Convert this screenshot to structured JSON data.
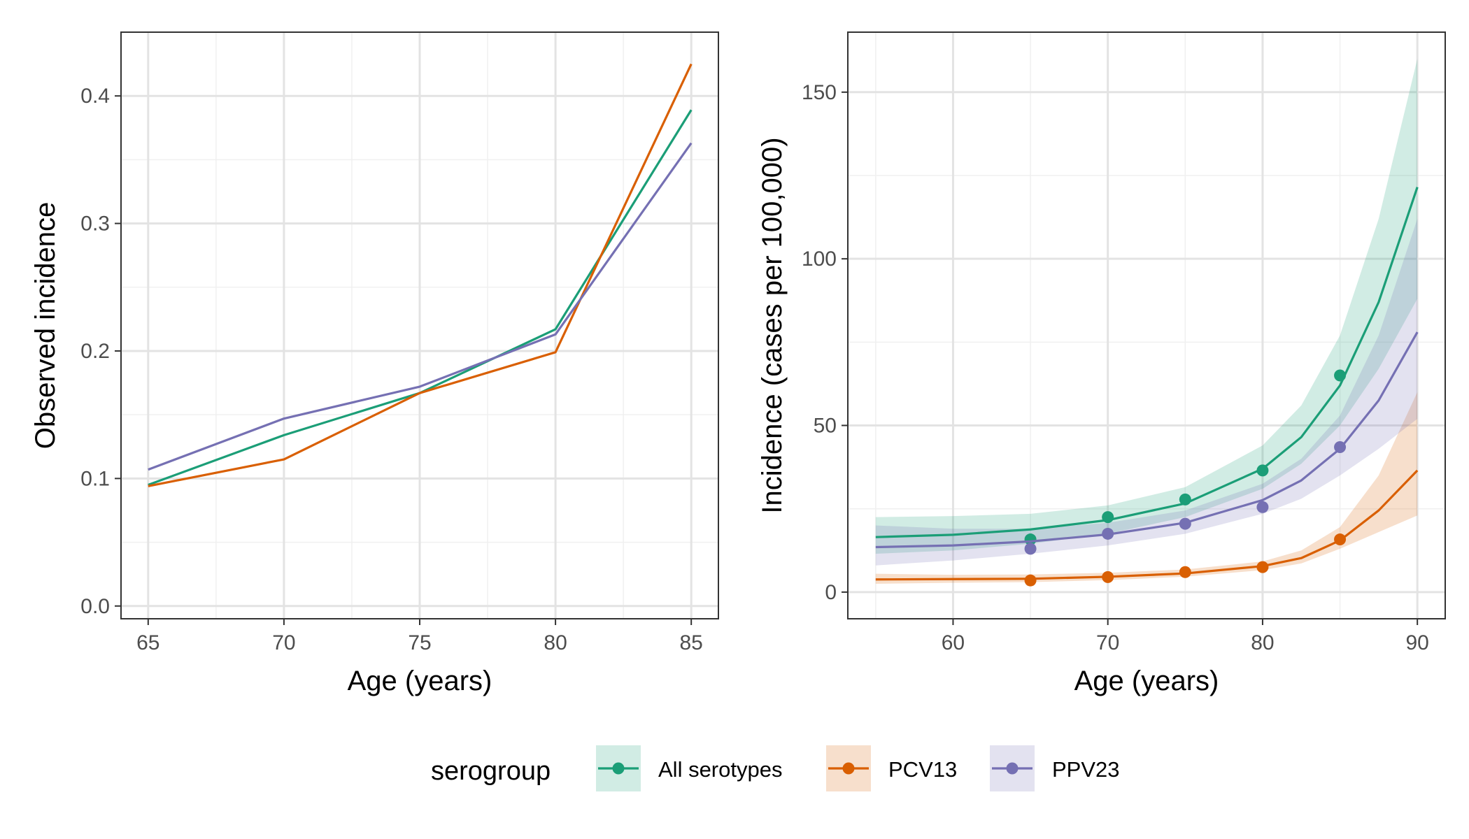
{
  "colors": {
    "All serotypes": "#1b9e77",
    "PCV13": "#d95f02",
    "PPV23": "#7570b3"
  },
  "legend": {
    "title": "serogroup",
    "items": [
      "All serotypes",
      "PCV13",
      "PPV23"
    ]
  },
  "chart_data": [
    {
      "type": "line",
      "xlabel": "Age (years)",
      "ylabel": "Observed incidence",
      "xlim": [
        64,
        86
      ],
      "ylim": [
        -0.01,
        0.45
      ],
      "xticks": [
        65,
        70,
        75,
        80,
        85
      ],
      "xtick_labels": [
        "65",
        "70",
        "75",
        "80",
        "85"
      ],
      "yticks": [
        0.0,
        0.1,
        0.2,
        0.3,
        0.4
      ],
      "ytick_labels": [
        "0.0",
        "0.1",
        "0.2",
        "0.3",
        "0.4"
      ],
      "grid": true,
      "x": [
        65,
        70,
        75,
        80,
        85
      ],
      "series": [
        {
          "name": "All serotypes",
          "values": [
            0.095,
            0.134,
            0.167,
            0.217,
            0.389
          ]
        },
        {
          "name": "PCV13",
          "values": [
            0.094,
            0.115,
            0.167,
            0.199,
            0.425
          ]
        },
        {
          "name": "PPV23",
          "values": [
            0.107,
            0.147,
            0.172,
            0.213,
            0.363
          ]
        }
      ]
    },
    {
      "type": "line",
      "xlabel": "Age (years)",
      "ylabel": "Incidence (cases per 100,000)",
      "xlim": [
        53.2,
        91.8
      ],
      "ylim": [
        -8,
        168
      ],
      "xticks": [
        60,
        70,
        80,
        90
      ],
      "xtick_labels": [
        "60",
        "70",
        "80",
        "90"
      ],
      "yticks": [
        0,
        50,
        100,
        150
      ],
      "ytick_labels": [
        "0",
        "50",
        "100",
        "150"
      ],
      "grid": true,
      "points_x": [
        65,
        70,
        75,
        80,
        85
      ],
      "series": [
        {
          "name": "All serotypes",
          "curve_x": [
            55,
            60,
            65,
            70,
            75,
            80,
            82.5,
            85,
            87.5,
            90
          ],
          "curve_y": [
            16.5,
            17.2,
            18.8,
            21.6,
            26.6,
            37.0,
            46.5,
            62.0,
            87.0,
            121.5
          ],
          "lower": [
            11.5,
            12.5,
            14.5,
            17.5,
            22.5,
            31.0,
            38.5,
            50.0,
            67.0,
            88.0
          ],
          "upper": [
            22.5,
            22.8,
            23.5,
            26.0,
            31.5,
            44.0,
            56.0,
            77.0,
            112.0,
            160.0
          ],
          "points": [
            15.8,
            22.5,
            27.8,
            36.5,
            65.0
          ]
        },
        {
          "name": "PCV13",
          "curve_x": [
            55,
            60,
            65,
            70,
            75,
            80,
            82.5,
            85,
            87.5,
            90
          ],
          "curve_y": [
            3.8,
            3.9,
            4.0,
            4.6,
            5.6,
            7.8,
            10.2,
            15.5,
            24.5,
            36.5
          ],
          "lower": [
            2.5,
            2.8,
            3.0,
            3.6,
            4.6,
            6.6,
            8.6,
            13.0,
            18.0,
            23.0
          ],
          "upper": [
            5.5,
            5.2,
            5.3,
            5.8,
            6.8,
            9.2,
            12.5,
            19.5,
            35.0,
            60.0
          ],
          "points": [
            3.5,
            4.5,
            6.0,
            7.5,
            15.8
          ]
        },
        {
          "name": "PPV23",
          "curve_x": [
            55,
            60,
            65,
            70,
            75,
            80,
            82.5,
            85,
            87.5,
            90
          ],
          "curve_y": [
            13.5,
            14.0,
            15.2,
            17.3,
            20.8,
            27.6,
            33.5,
            43.0,
            57.5,
            78.0
          ],
          "lower": [
            8.0,
            9.5,
            11.5,
            14.0,
            17.5,
            23.5,
            28.0,
            35.0,
            43.0,
            52.0
          ],
          "upper": [
            20.0,
            19.0,
            19.0,
            20.8,
            24.5,
            32.5,
            40.0,
            53.0,
            77.0,
            112.0
          ],
          "points": [
            13.0,
            17.5,
            20.5,
            25.5,
            43.5
          ]
        }
      ]
    }
  ]
}
